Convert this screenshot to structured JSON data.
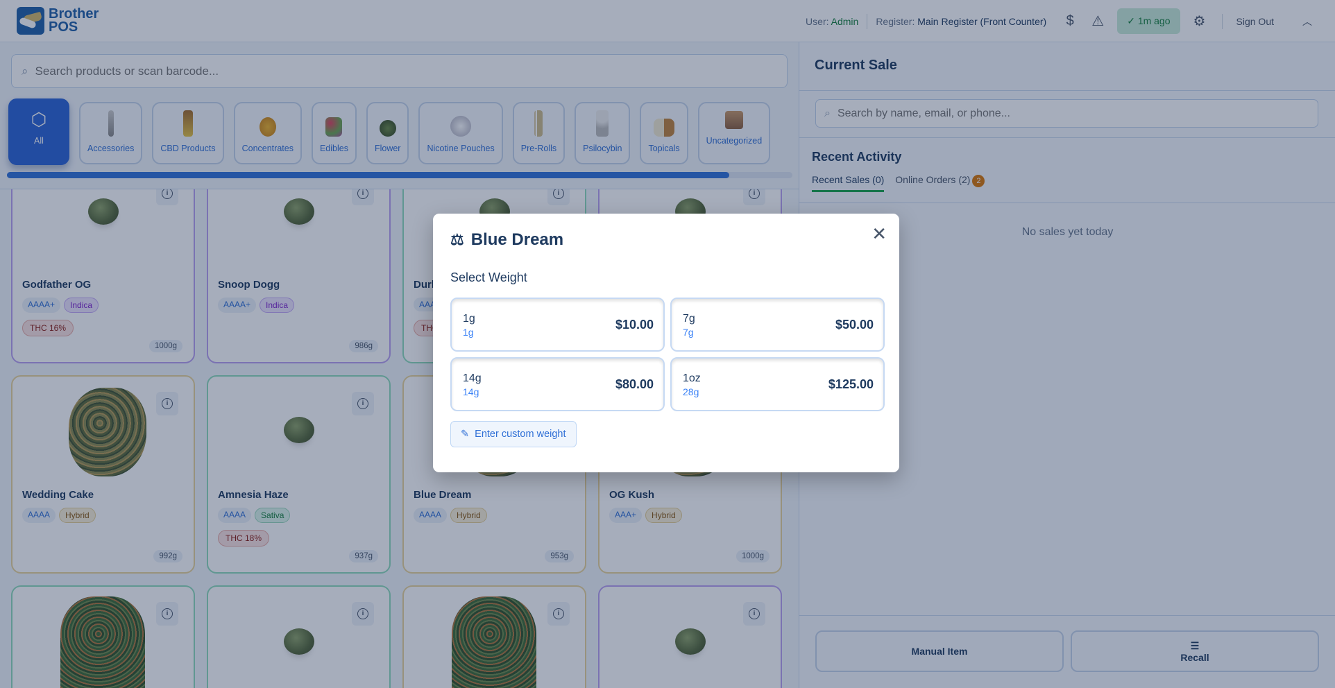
{
  "header": {
    "logo_line1": "Brother",
    "logo_line2": "POS",
    "user_label": "User:",
    "user": "Admin",
    "register_label": "Register:",
    "register": "Main Register (Front Counter)",
    "sync_status": "1m ago",
    "sign_out": "Sign Out"
  },
  "search": {
    "placeholder": "Search products or scan barcode..."
  },
  "categories": [
    "All",
    "Accessories",
    "CBD Products",
    "Concentrates",
    "Edibles",
    "Flower",
    "Nicotine Pouches",
    "Pre-Rolls",
    "Psilocybin",
    "Topicals",
    "Uncategorized"
  ],
  "category_scroll_percent": 92,
  "products": [
    {
      "name": "Godfather OG",
      "grade": "AAAA+",
      "type": "Indica",
      "thc": "THC 16%",
      "stock": "1000g"
    },
    {
      "name": "Snoop Dogg",
      "grade": "AAAA+",
      "type": "Indica",
      "thc": "",
      "stock": "986g"
    },
    {
      "name": "Durb",
      "grade": "AAA",
      "type": "",
      "thc": "THC",
      "stock": ""
    },
    {
      "name": "",
      "grade": "",
      "type": "",
      "thc": "",
      "stock": ""
    },
    {
      "name": "Wedding Cake",
      "grade": "AAAA",
      "type": "Hybrid",
      "thc": "",
      "stock": "992g"
    },
    {
      "name": "Amnesia Haze",
      "grade": "AAAA",
      "type": "Sativa",
      "thc": "THC 18%",
      "stock": "937g"
    },
    {
      "name": "Blue Dream",
      "grade": "AAAA",
      "type": "Hybrid",
      "thc": "",
      "stock": "953g"
    },
    {
      "name": "OG Kush",
      "grade": "AAA+",
      "type": "Hybrid",
      "thc": "",
      "stock": "1000g"
    }
  ],
  "sale": {
    "title": "Current Sale",
    "customer_search_placeholder": "Search by name, email, or phone...",
    "recent_activity": "Recent Activity",
    "tab_recent": "Recent Sales (0)",
    "tab_online": "Online Orders (2)",
    "online_badge": "2",
    "empty": "No sales yet today",
    "manual_item": "Manual Item",
    "recall": "Recall"
  },
  "modal": {
    "title": "Blue Dream",
    "subtitle": "Select Weight",
    "options": [
      {
        "label": "1g",
        "grams": "1g",
        "price": "$10.00"
      },
      {
        "label": "7g",
        "grams": "7g",
        "price": "$50.00"
      },
      {
        "label": "14g",
        "grams": "14g",
        "price": "$80.00"
      },
      {
        "label": "1oz",
        "grams": "28g",
        "price": "$125.00"
      }
    ],
    "custom": "Enter custom weight"
  },
  "colors": {
    "accent": "#2a63d6",
    "indica": "#7e22ce",
    "sativa": "#15803d",
    "hybrid": "#8a5a14",
    "online_badge": "#d97706"
  }
}
